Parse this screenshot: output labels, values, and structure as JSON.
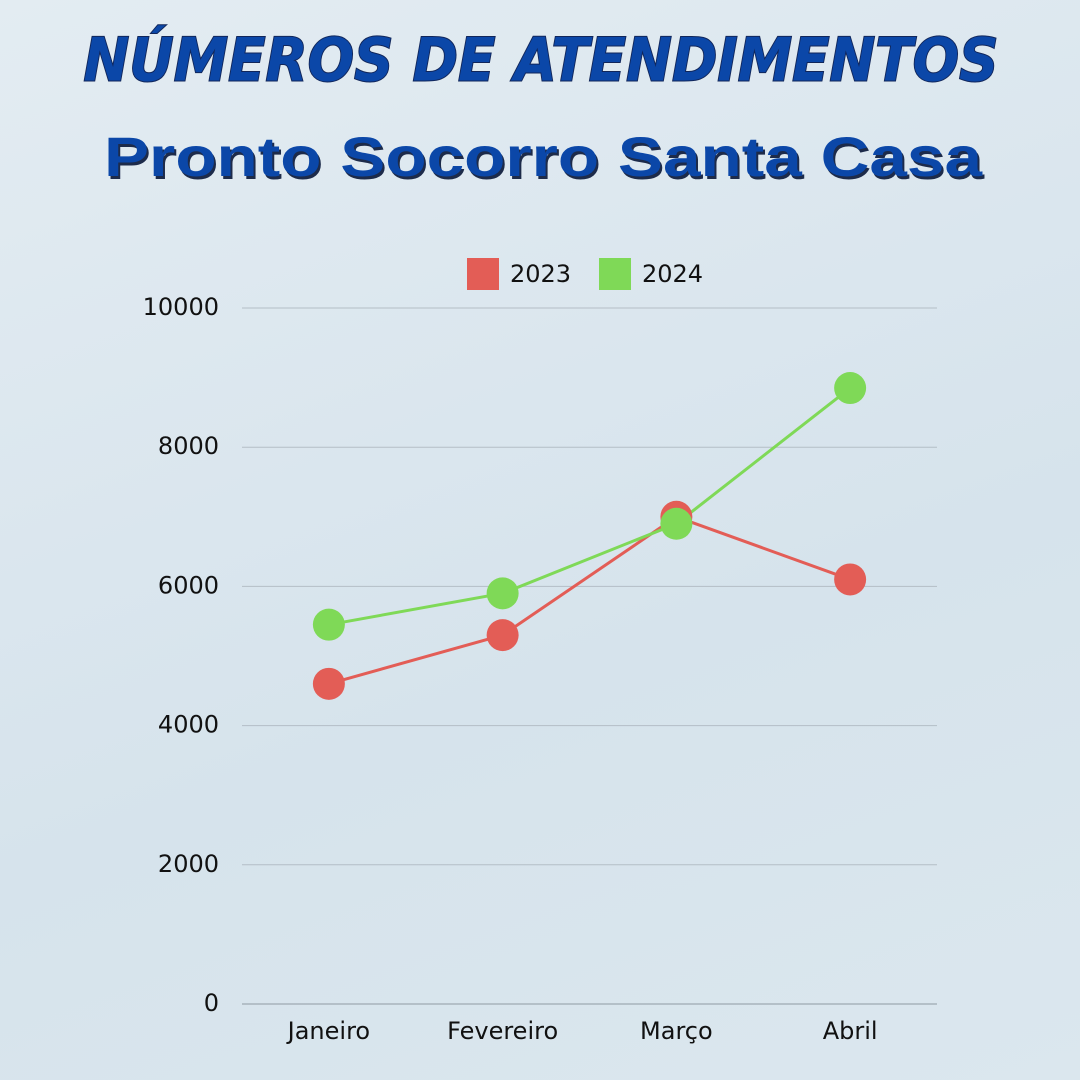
{
  "chart_data": {
    "type": "line",
    "title": "NÚMEROS DE ATENDIMENTOS",
    "subtitle": "Pronto Socorro Santa Casa",
    "categories": [
      "Janeiro",
      "Fevereiro",
      "Março",
      "Abril"
    ],
    "series": [
      {
        "name": "2023",
        "color": "#e35d56",
        "values": [
          4600,
          5300,
          7000,
          6100
        ]
      },
      {
        "name": "2024",
        "color": "#7fd957",
        "values": [
          5450,
          5900,
          6900,
          8850
        ]
      }
    ],
    "ylim": [
      0,
      10000
    ],
    "yticks": [
      0,
      2000,
      4000,
      6000,
      8000,
      10000
    ],
    "grid": true,
    "legend": "top"
  }
}
